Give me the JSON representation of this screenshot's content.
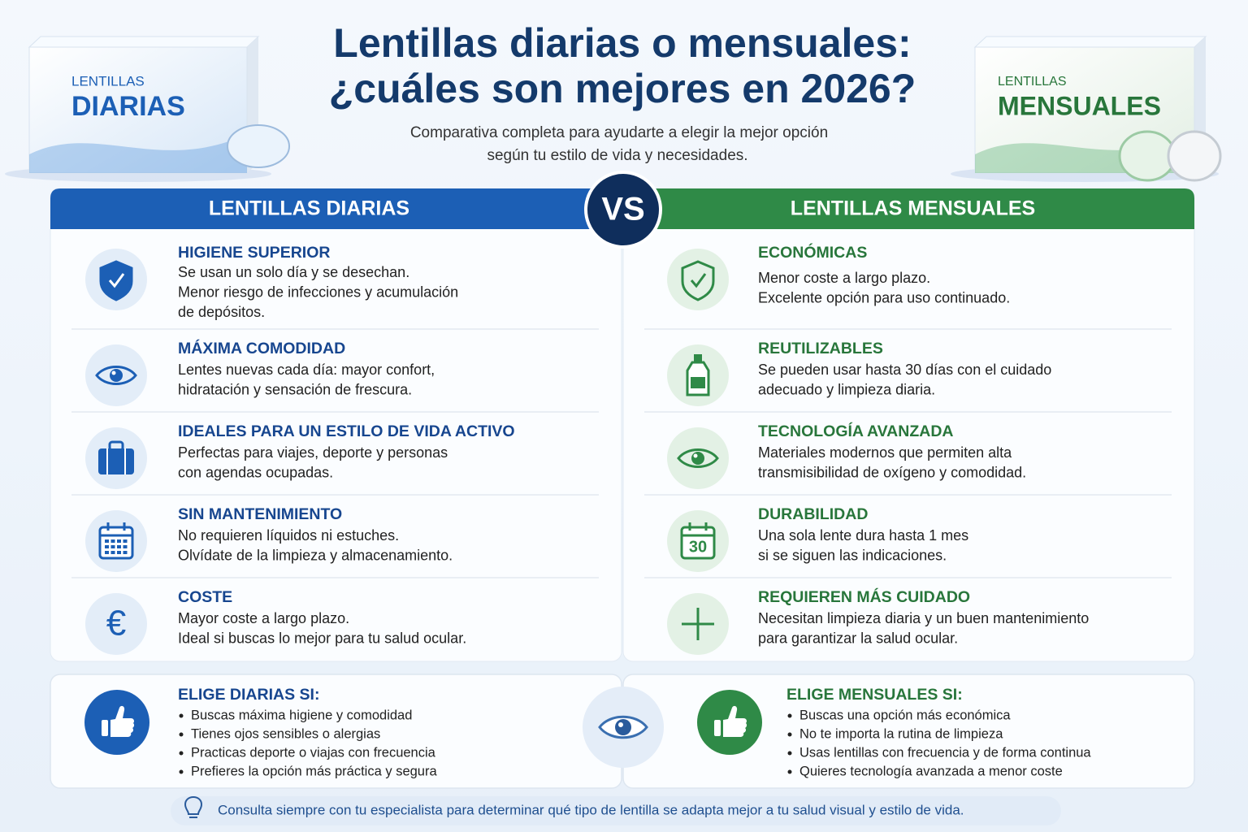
{
  "header": {
    "title": [
      "Lentillas diarias o mensuales:",
      "¿cuáles son mejores en 2026?"
    ],
    "subtitle": [
      "Comparativa completa para ayudarte a elegir la mejor opción",
      "según tu estilo de vida y necesidades."
    ]
  },
  "boxes": [
    {
      "small": "LENTILLAS",
      "big": "DIARIAS"
    },
    {
      "small": "LENTILLAS",
      "big": "MENSUALES"
    }
  ],
  "vs": "VS",
  "columns": [
    {
      "heading": "LENTILLAS DIARIAS",
      "items": [
        {
          "title": "HIGIENE SUPERIOR",
          "lines": [
            "Se usan un solo día y se desechan.",
            "Menor riesgo de infecciones y acumulación",
            "de depósitos."
          ]
        },
        {
          "title": "MÁXIMA COMODIDAD",
          "lines": [
            "Lentes nuevas cada día: mayor confort,",
            "hidratación y sensación de frescura."
          ]
        },
        {
          "title": "IDEALES PARA UN ESTILO DE VIDA ACTIVO",
          "lines": [
            "Perfectas para viajes, deporte y personas",
            "con agendas ocupadas."
          ]
        },
        {
          "title": "SIN MANTENIMIENTO",
          "lines": [
            "No requieren líquidos ni estuches.",
            "Olvídate de la limpieza y almacenamiento."
          ]
        },
        {
          "title": "COSTE",
          "icon_text": "€",
          "lines": [
            "Mayor coste a largo plazo.",
            "Ideal si buscas lo mejor para tu salud ocular."
          ]
        }
      ]
    },
    {
      "heading": "LENTILLAS MENSUALES",
      "items": [
        {
          "title": "ECONÓMICAS",
          "lines": [
            "Menor coste a largo plazo.",
            "Excelente opción para uso continuado."
          ]
        },
        {
          "title": "REUTILIZABLES",
          "lines": [
            "Se pueden usar hasta 30 días con el cuidado",
            "adecuado y limpieza diaria."
          ]
        },
        {
          "title": "TECNOLOGÍA AVANZADA",
          "lines": [
            "Materiales modernos que permiten alta",
            "transmisibilidad de oxígeno y comodidad."
          ]
        },
        {
          "title": "DURABILIDAD",
          "icon_text": "30",
          "lines": [
            "Una sola lente dura hasta 1 mes",
            "si se siguen las indicaciones."
          ]
        },
        {
          "title": "REQUIEREN MÁS CUIDADO",
          "lines": [
            "Necesitan limpieza diaria y un buen mantenimiento",
            "para garantizar la salud ocular."
          ]
        }
      ]
    }
  ],
  "recommendations": [
    {
      "title": "ELIGE DIARIAS SI:",
      "bullets": [
        "Buscas máxima higiene y comodidad",
        "Tienes ojos sensibles o alergias",
        "Practicas deporte o viajas con frecuencia",
        "Prefieres la opción más práctica y segura"
      ]
    },
    {
      "title": "ELIGE MENSUALES SI:",
      "bullets": [
        "Buscas una opción más económica",
        "No te importa la rutina de limpieza",
        "Usas lentillas con frecuencia y de forma continua",
        "Quieres tecnología avanzada a menor coste"
      ]
    }
  ],
  "note": "Consulta siempre con tu especialista para determinar qué tipo de lentilla se adapta mejor a tu salud visual y estilo de vida."
}
